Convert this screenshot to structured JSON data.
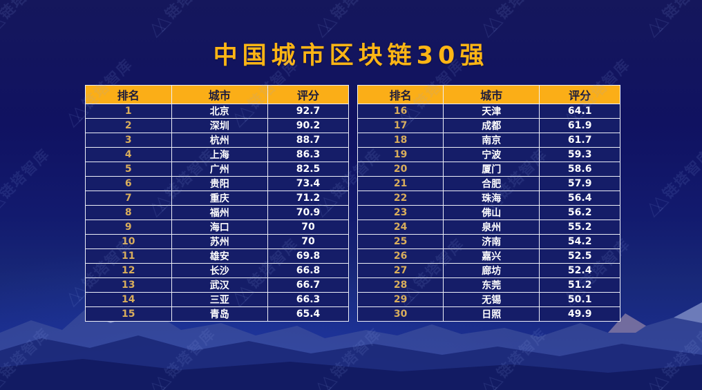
{
  "title": "中国城市区块链30强",
  "watermark": {
    "logo": "△△",
    "text": "链塔智库"
  },
  "tables": [
    {
      "headers": [
        "排名",
        "城市",
        "评分"
      ],
      "rows": [
        [
          "1",
          "北京",
          "92.7"
        ],
        [
          "2",
          "深圳",
          "90.2"
        ],
        [
          "3",
          "杭州",
          "88.7"
        ],
        [
          "4",
          "上海",
          "86.3"
        ],
        [
          "5",
          "广州",
          "82.5"
        ],
        [
          "6",
          "贵阳",
          "73.4"
        ],
        [
          "7",
          "重庆",
          "71.2"
        ],
        [
          "8",
          "福州",
          "70.9"
        ],
        [
          "9",
          "海口",
          "70"
        ],
        [
          "10",
          "苏州",
          "70"
        ],
        [
          "11",
          "雄安",
          "69.8"
        ],
        [
          "12",
          "长沙",
          "66.8"
        ],
        [
          "13",
          "武汉",
          "66.7"
        ],
        [
          "14",
          "三亚",
          "66.3"
        ],
        [
          "15",
          "青岛",
          "65.4"
        ]
      ]
    },
    {
      "headers": [
        "排名",
        "城市",
        "评分"
      ],
      "rows": [
        [
          "16",
          "天津",
          "64.1"
        ],
        [
          "17",
          "成都",
          "61.9"
        ],
        [
          "18",
          "南京",
          "61.7"
        ],
        [
          "19",
          "宁波",
          "59.3"
        ],
        [
          "20",
          "厦门",
          "58.6"
        ],
        [
          "21",
          "合肥",
          "57.9"
        ],
        [
          "22",
          "珠海",
          "56.4"
        ],
        [
          "23",
          "佛山",
          "56.2"
        ],
        [
          "24",
          "泉州",
          "55.2"
        ],
        [
          "25",
          "济南",
          "54.2"
        ],
        [
          "26",
          "嘉兴",
          "52.5"
        ],
        [
          "27",
          "廊坊",
          "52.4"
        ],
        [
          "28",
          "东莞",
          "51.2"
        ],
        [
          "29",
          "无锡",
          "50.1"
        ],
        [
          "30",
          "日照",
          "49.9"
        ]
      ]
    }
  ],
  "chart_data": {
    "type": "table",
    "title": "中国城市区块链30强",
    "columns": [
      "排名",
      "城市",
      "评分"
    ],
    "rows": [
      [
        1,
        "北京",
        92.7
      ],
      [
        2,
        "深圳",
        90.2
      ],
      [
        3,
        "杭州",
        88.7
      ],
      [
        4,
        "上海",
        86.3
      ],
      [
        5,
        "广州",
        82.5
      ],
      [
        6,
        "贵阳",
        73.4
      ],
      [
        7,
        "重庆",
        71.2
      ],
      [
        8,
        "福州",
        70.9
      ],
      [
        9,
        "海口",
        70
      ],
      [
        10,
        "苏州",
        70
      ],
      [
        11,
        "雄安",
        69.8
      ],
      [
        12,
        "长沙",
        66.8
      ],
      [
        13,
        "武汉",
        66.7
      ],
      [
        14,
        "三亚",
        66.3
      ],
      [
        15,
        "青岛",
        65.4
      ],
      [
        16,
        "天津",
        64.1
      ],
      [
        17,
        "成都",
        61.9
      ],
      [
        18,
        "南京",
        61.7
      ],
      [
        19,
        "宁波",
        59.3
      ],
      [
        20,
        "厦门",
        58.6
      ],
      [
        21,
        "合肥",
        57.9
      ],
      [
        22,
        "珠海",
        56.4
      ],
      [
        23,
        "佛山",
        56.2
      ],
      [
        24,
        "泉州",
        55.2
      ],
      [
        25,
        "济南",
        54.2
      ],
      [
        26,
        "嘉兴",
        52.5
      ],
      [
        27,
        "廊坊",
        52.4
      ],
      [
        28,
        "东莞",
        51.2
      ],
      [
        29,
        "无锡",
        50.1
      ],
      [
        30,
        "日照",
        49.9
      ]
    ],
    "layout_hints": {
      "split": "two side-by-side tables, ranks 1-15 left, 16-30 right"
    }
  },
  "colors": {
    "title": "#FDB515",
    "header_bg": "#FBAE17",
    "header_text": "#1C1C3C",
    "row_bg": "#151D68",
    "rank_text": "#D9AE5C",
    "cell_text": "#FFFFFF",
    "border": "#EEF0F8",
    "background_top": "#15175C",
    "background_bottom": "#1C309C"
  }
}
